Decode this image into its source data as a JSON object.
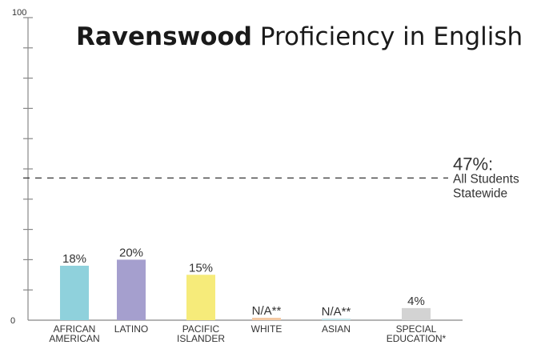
{
  "chart_data": {
    "type": "bar",
    "title_bold": "Ravenswood",
    "title_rest": "Proficiency in English",
    "ylim": [
      0,
      100
    ],
    "y_tick_labels": [
      "0",
      "100"
    ],
    "categories": [
      [
        "AFRICAN",
        "AMERICAN"
      ],
      [
        "LATINO"
      ],
      [
        "PACIFIC",
        "ISLANDER"
      ],
      [
        "WHITE"
      ],
      [
        "ASIAN"
      ],
      [
        "SPECIAL",
        "EDUCATION*"
      ]
    ],
    "values": [
      18,
      20,
      15,
      0.8,
      0.5,
      4
    ],
    "value_labels": [
      "18%",
      "20%",
      "15%",
      "N/A**",
      "N/A**",
      "4%"
    ],
    "colors": [
      "#8fd1dc",
      "#a59fce",
      "#f6eb7a",
      "#f3c9a3",
      "#bfe1e6",
      "#d3d3d3"
    ],
    "reference_line": {
      "value": 47,
      "label_value": "47%:",
      "label_lines": [
        "All Students",
        "Statewide"
      ],
      "style": "dashed"
    },
    "grid": false
  }
}
